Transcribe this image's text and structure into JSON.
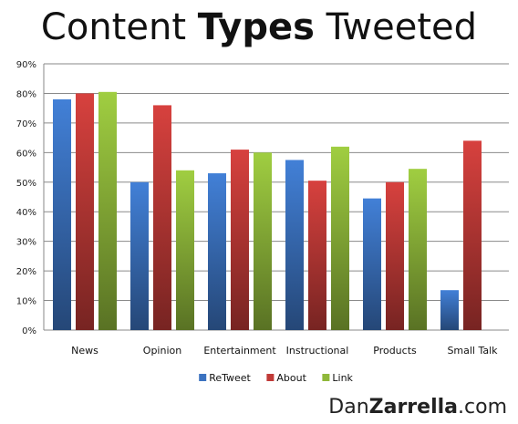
{
  "title": {
    "part1": "Content ",
    "part2": "Types",
    "part3": " Tweeted"
  },
  "watermark": {
    "part1": "Dan",
    "part2": "Zarrella",
    "part3": ".com"
  },
  "chart_data": {
    "type": "bar",
    "title": "Content Types Tweeted",
    "xlabel": "",
    "ylabel": "",
    "ylim": [
      0,
      90
    ],
    "y_ticks": [
      0,
      10,
      20,
      30,
      40,
      50,
      60,
      70,
      80,
      90
    ],
    "y_tick_labels": [
      "0%",
      "10%",
      "20%",
      "30%",
      "40%",
      "50%",
      "60%",
      "70%",
      "80%",
      "90%"
    ],
    "grid": true,
    "legend_position": "bottom",
    "categories": [
      "News",
      "Opinion",
      "Entertainment",
      "Instructional",
      "Products",
      "Small Talk"
    ],
    "series": [
      {
        "name": "ReTweet",
        "color": "#3b72c0",
        "values": [
          78,
          50,
          53,
          57.5,
          44.5,
          13.5
        ]
      },
      {
        "name": "About",
        "color": "#c03a37",
        "values": [
          80,
          76,
          61,
          50.5,
          50,
          64
        ]
      },
      {
        "name": "Link",
        "color": "#8fb83a",
        "values": [
          80.5,
          54,
          60,
          62,
          54.5,
          null
        ]
      }
    ]
  }
}
